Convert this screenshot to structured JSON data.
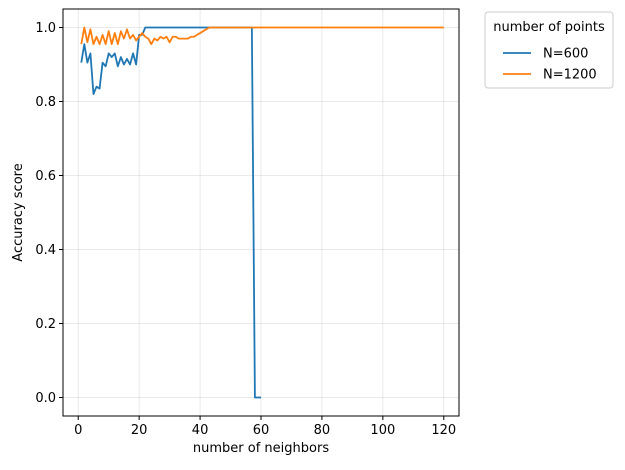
{
  "chart_data": {
    "type": "line",
    "title": "",
    "xlabel": "number of neighbors",
    "ylabel": "Accuracy score",
    "xlim": [
      -5,
      125
    ],
    "ylim": [
      -0.05,
      1.05
    ],
    "xticks": [
      0,
      20,
      40,
      60,
      80,
      100,
      120
    ],
    "xtick_labels": [
      "0",
      "20",
      "40",
      "60",
      "80",
      "100",
      "120"
    ],
    "yticks": [
      0.0,
      0.2,
      0.4,
      0.6,
      0.8,
      1.0
    ],
    "ytick_labels": [
      "0.0",
      "0.2",
      "0.4",
      "0.6",
      "0.8",
      "1.0"
    ],
    "grid": true,
    "legend": {
      "title": "number of points",
      "placement": "outside-top-right"
    },
    "series": [
      {
        "name": "N=600",
        "color": "#1f77b4",
        "x": [
          1,
          2,
          3,
          4,
          5,
          6,
          7,
          8,
          9,
          10,
          11,
          12,
          13,
          14,
          15,
          16,
          17,
          18,
          19,
          20,
          21,
          22,
          23,
          24,
          25,
          26,
          27,
          28,
          29,
          30,
          31,
          32,
          33,
          34,
          35,
          36,
          37,
          38,
          39,
          40,
          41,
          42,
          43,
          44,
          45,
          46,
          47,
          48,
          49,
          50,
          51,
          52,
          53,
          54,
          55,
          56,
          57,
          58,
          59,
          60
        ],
        "y": [
          0.905,
          0.955,
          0.905,
          0.93,
          0.82,
          0.84,
          0.835,
          0.905,
          0.895,
          0.93,
          0.92,
          0.93,
          0.895,
          0.92,
          0.9,
          0.915,
          0.9,
          0.93,
          0.9,
          0.98,
          0.98,
          1.0,
          1.0,
          1.0,
          1.0,
          1.0,
          1.0,
          1.0,
          1.0,
          1.0,
          1.0,
          1.0,
          1.0,
          1.0,
          1.0,
          1.0,
          1.0,
          1.0,
          1.0,
          1.0,
          1.0,
          1.0,
          1.0,
          1.0,
          1.0,
          1.0,
          1.0,
          1.0,
          1.0,
          1.0,
          1.0,
          1.0,
          1.0,
          1.0,
          1.0,
          1.0,
          1.0,
          0.0,
          0.0,
          0.0
        ]
      },
      {
        "name": "N=1200",
        "color": "#ff7f0e",
        "x": [
          1,
          2,
          3,
          4,
          5,
          6,
          7,
          8,
          9,
          10,
          11,
          12,
          13,
          14,
          15,
          16,
          17,
          18,
          19,
          20,
          21,
          22,
          23,
          24,
          25,
          26,
          27,
          28,
          29,
          30,
          31,
          32,
          33,
          34,
          35,
          36,
          37,
          38,
          39,
          40,
          41,
          42,
          43,
          44,
          45,
          46,
          47,
          48,
          49,
          50,
          51,
          52,
          53,
          54,
          55,
          56,
          57,
          58,
          59,
          60,
          120
        ],
        "y": [
          0.955,
          1.0,
          0.96,
          0.995,
          0.955,
          0.975,
          0.955,
          0.98,
          0.955,
          0.99,
          0.955,
          0.985,
          0.955,
          0.99,
          0.97,
          0.995,
          0.97,
          0.98,
          0.965,
          0.975,
          0.985,
          0.975,
          0.97,
          0.955,
          0.97,
          0.965,
          0.975,
          0.97,
          0.975,
          0.96,
          0.975,
          0.975,
          0.97,
          0.97,
          0.97,
          0.97,
          0.975,
          0.975,
          0.98,
          0.985,
          0.99,
          0.995,
          1.0,
          1.0,
          1.0,
          1.0,
          1.0,
          1.0,
          1.0,
          1.0,
          1.0,
          1.0,
          1.0,
          1.0,
          1.0,
          1.0,
          1.0,
          1.0,
          1.0,
          1.0,
          1.0
        ]
      }
    ]
  }
}
